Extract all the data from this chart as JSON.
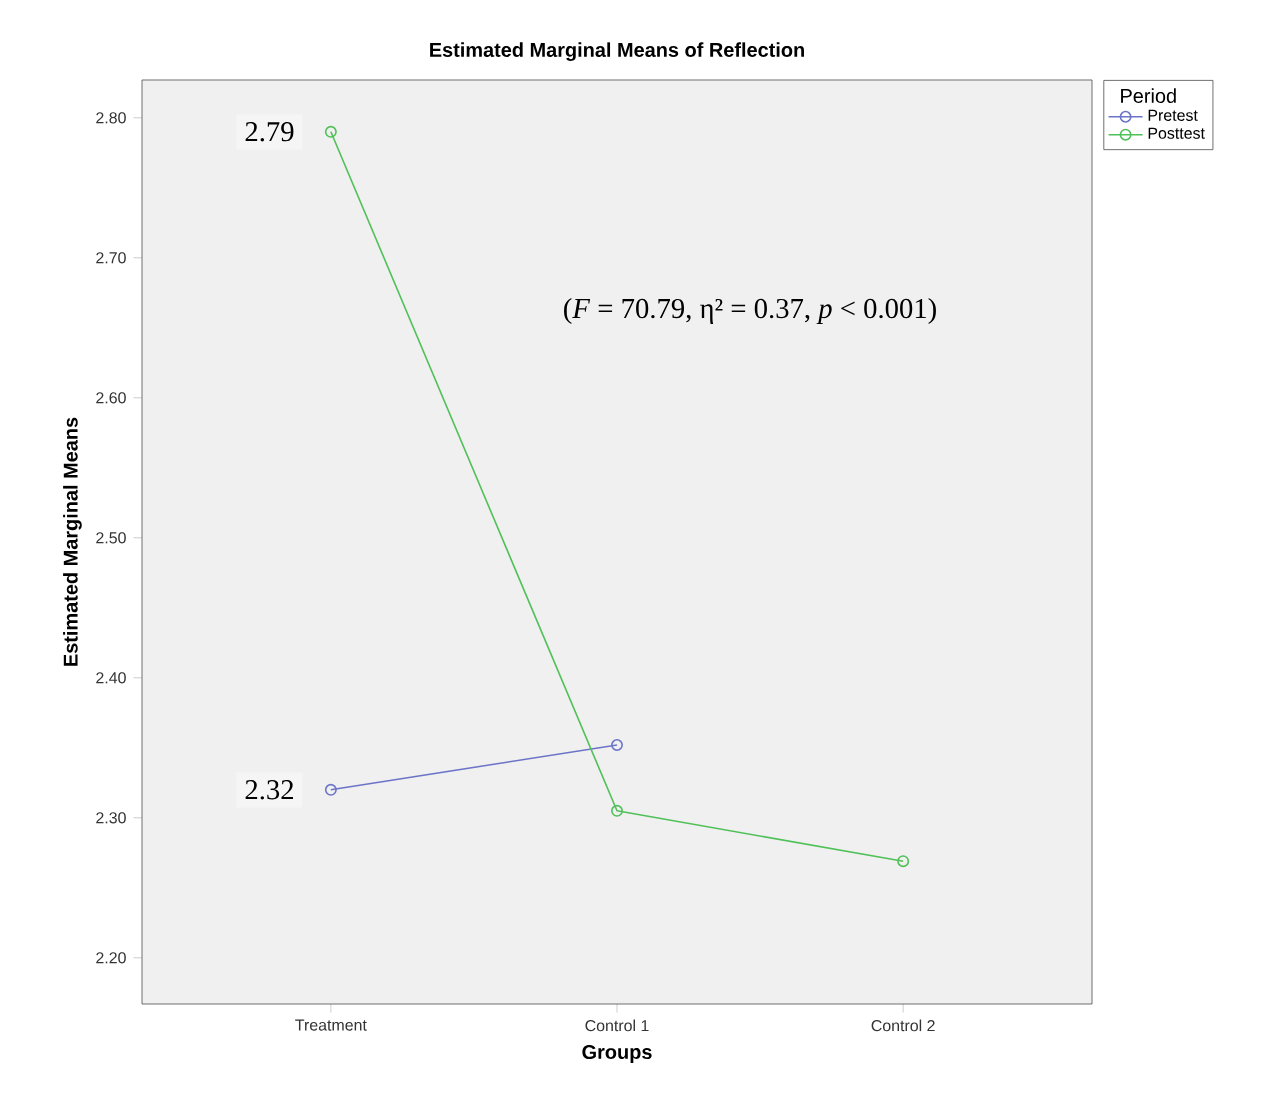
{
  "chart_data": {
    "type": "line",
    "title": "Estimated Marginal Means of Reflection",
    "xlabel": "Groups",
    "ylabel": "Estimated Marginal Means",
    "legend_title": "Period",
    "categories": [
      "Treatment",
      "Control 1",
      "Control 2"
    ],
    "series": [
      {
        "name": "Pretest",
        "color": "#6b74c8",
        "values": [
          2.32,
          2.352,
          null
        ]
      },
      {
        "name": "Posttest",
        "color": "#50c058",
        "values": [
          2.79,
          2.305,
          2.269
        ]
      }
    ],
    "ylim": [
      2.167,
      2.827
    ],
    "yticks": [
      {
        "value": 2.2,
        "label": "2.20"
      },
      {
        "value": 2.3,
        "label": "2.30"
      },
      {
        "value": 2.4,
        "label": "2.40"
      },
      {
        "value": 2.5,
        "label": "2.50"
      },
      {
        "value": 2.6,
        "label": "2.60"
      },
      {
        "value": 2.7,
        "label": "2.70"
      },
      {
        "value": 2.8,
        "label": "2.80"
      }
    ],
    "marker": "circle",
    "legend": "top right",
    "grid": false,
    "annotations": [
      {
        "text": "2.79",
        "x": "Treatment",
        "y": 2.79
      },
      {
        "text": "2.32",
        "x": "Treatment",
        "y": 2.32
      },
      "(*F* = 70.79, η² = 0.37, *p* < 0.001)"
    ]
  }
}
